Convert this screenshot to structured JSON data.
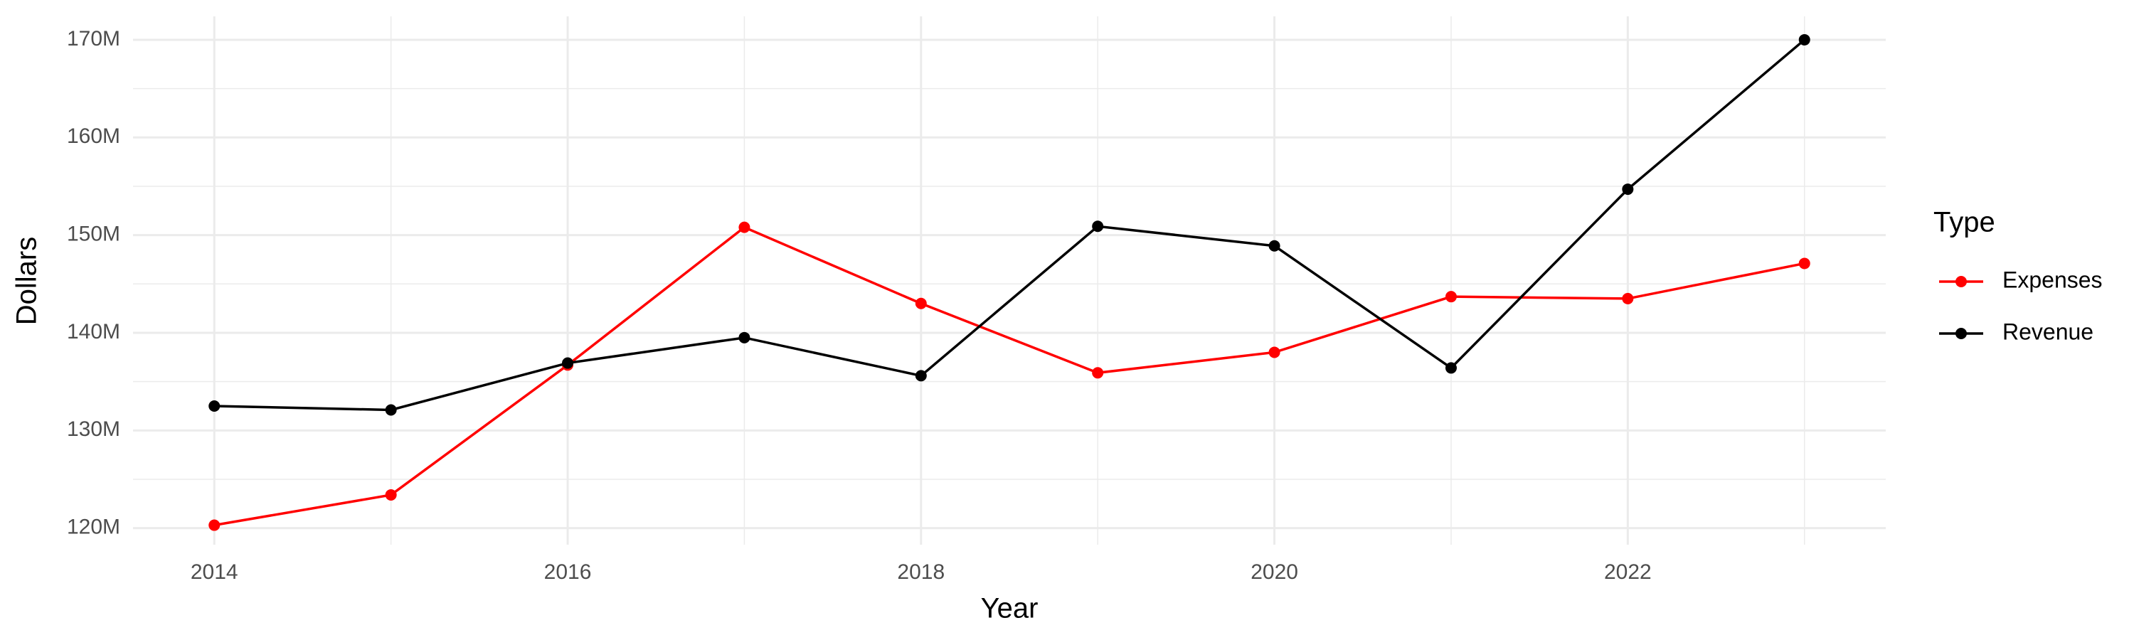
{
  "chart_data": {
    "type": "line",
    "x_label": "Year",
    "y_label": "Dollars",
    "legend_title": "Type",
    "x": [
      2014,
      2015,
      2016,
      2017,
      2018,
      2019,
      2020,
      2021,
      2022,
      2023
    ],
    "series": [
      {
        "name": "Expenses",
        "color": "#ff0000",
        "values": [
          120300000,
          123400000,
          136700000,
          150800000,
          143000000,
          135900000,
          138000000,
          143700000,
          143500000,
          147100000
        ]
      },
      {
        "name": "Revenue",
        "color": "#000000",
        "values": [
          132500000,
          132100000,
          136900000,
          139500000,
          135600000,
          150900000,
          148900000,
          136400000,
          154700000,
          170000000
        ]
      }
    ],
    "xlim": [
      2013.54,
      2023.46
    ],
    "xticks": [
      2014,
      2016,
      2018,
      2020,
      2022
    ],
    "ylim": [
      118300000,
      172400000
    ],
    "yticks": [
      {
        "value": 120000000,
        "label": "120M"
      },
      {
        "value": 130000000,
        "label": "130M"
      },
      {
        "value": 140000000,
        "label": "140M"
      },
      {
        "value": 150000000,
        "label": "150M"
      },
      {
        "value": 160000000,
        "label": "160M"
      },
      {
        "value": 170000000,
        "label": "170M"
      }
    ],
    "grid": true,
    "legend_position": "right"
  }
}
